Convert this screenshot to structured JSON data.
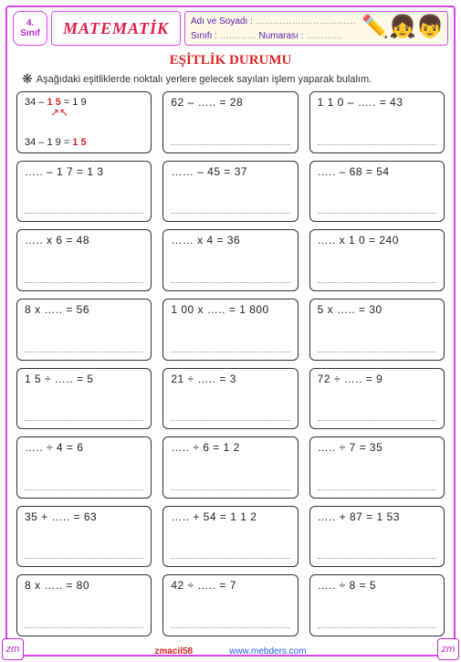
{
  "grade": {
    "num": "4.",
    "label": "Sınıf"
  },
  "title": "MATEMATİK",
  "info": {
    "name_label": "Adı ve Soyadı :",
    "class_label": "Sınıfı :",
    "number_label": "Numarası :",
    "dots": "……………………………"
  },
  "section_title": "EŞİTLİK  DURUMU",
  "instruction": "Aşağıdaki  eşitliklerde noktalı  yerlere  gelecek sayıları  işlem  yaparak  bulalım.",
  "first_card": {
    "line1a": "34 – ",
    "line1_ans": "1 5",
    "line1b": " = 1 9",
    "line2": "34 – 1 9 = ",
    "line2_ans": "1 5"
  },
  "cards": [
    "62 – ….. = 28",
    "1 1 0 – ….. = 43",
    "….. – 1 7  = 1 3",
    "…… – 45 = 37",
    "….. – 68 = 54",
    "….. x 6 = 48",
    "…… x 4 = 36",
    "….. x 1 0 = 240",
    "8 x ….. = 56",
    "1 00 x ….. = 1 800",
    "5 x ….. = 30",
    "1 5 ÷ ….. = 5",
    "21  ÷ ….. = 3",
    "72 ÷ ….. = 9",
    "….. ÷ 4 = 6",
    "….. ÷ 6 = 1 2",
    "….. ÷ 7 = 35",
    "35 + ….. = 63",
    "….. + 54 = 1 1 2",
    "….. + 87 = 1 53",
    "8 x ….. = 80",
    "42 ÷ ….. = 7",
    "….. ÷ 8 = 5"
  ],
  "footer": {
    "tag": "zmacil58",
    "url": "www.mebders.com"
  },
  "corner": "zm",
  "styles": {
    "border_color": "#d946ef",
    "title_color": "#e11d48",
    "section_color": "#dc2626",
    "card_border": "#333333",
    "answer_color": "#dc2626"
  }
}
